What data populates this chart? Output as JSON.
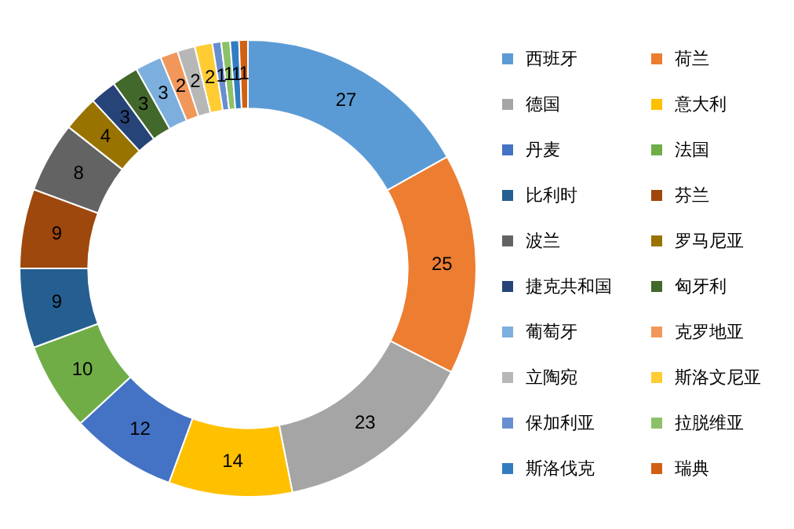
{
  "chart_data": {
    "type": "donut",
    "categories": [
      "西班牙",
      "荷兰",
      "德国",
      "意大利",
      "丹麦",
      "法国",
      "比利时",
      "芬兰",
      "波兰",
      "罗马尼亚",
      "捷克共和国",
      "匈牙利",
      "葡萄牙",
      "克罗地亚",
      "立陶宛",
      "斯洛文尼亚",
      "保加利亚",
      "拉脱维亚",
      "斯洛伐克",
      "瑞典"
    ],
    "values": [
      27,
      25,
      23,
      14,
      12,
      10,
      9,
      9,
      8,
      4,
      3,
      3,
      3,
      2,
      2,
      2,
      1,
      1,
      1,
      1
    ],
    "colors": [
      "#5b9bd5",
      "#ed7d31",
      "#a5a5a5",
      "#ffc000",
      "#4472c4",
      "#70ad47",
      "#255e91",
      "#9e480e",
      "#636363",
      "#997300",
      "#264478",
      "#43682b",
      "#7cafdd",
      "#f1975a",
      "#b7b7b7",
      "#ffcd33",
      "#698ed0",
      "#8cc168",
      "#327dc2",
      "#d26012"
    ],
    "data_labels": true,
    "legend": "right"
  }
}
